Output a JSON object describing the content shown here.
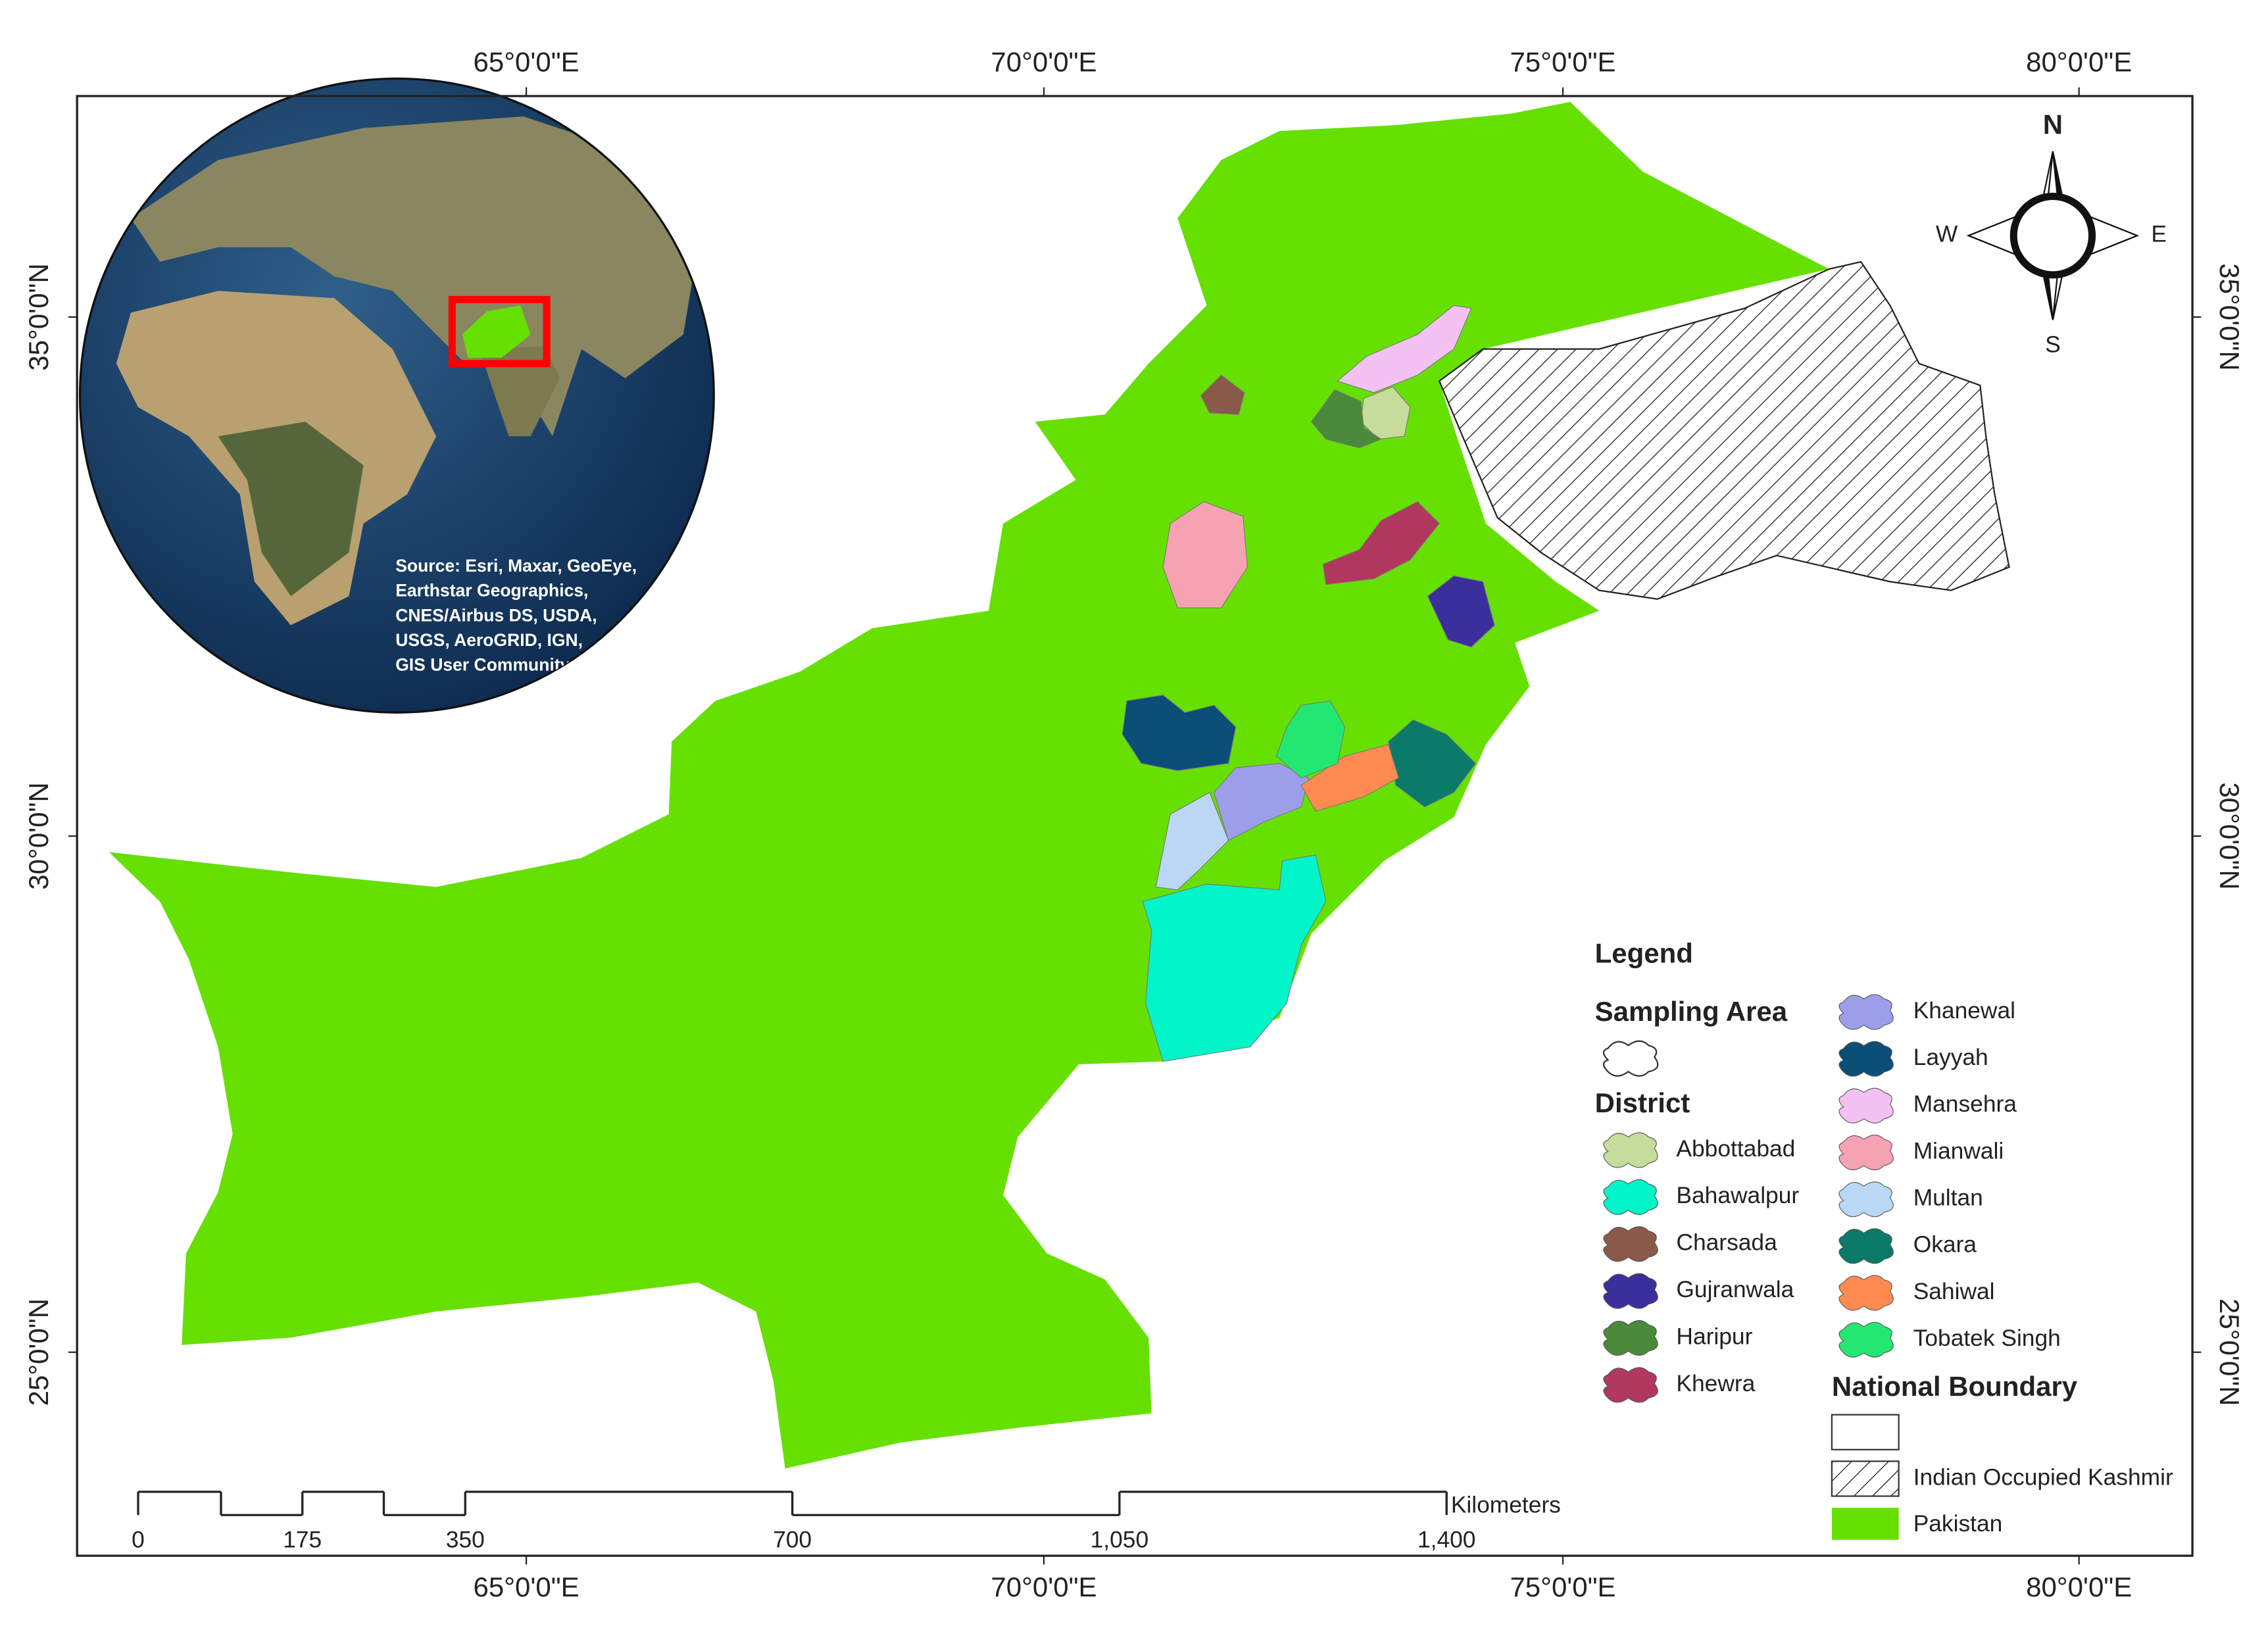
{
  "graticule": {
    "longitudes": [
      "65°0'0\"E",
      "70°0'0\"E",
      "75°0'0\"E",
      "80°0'0\"E"
    ],
    "latitudes": [
      "35°0'0\"N",
      "30°0'0\"N",
      "25°0'0\"N"
    ]
  },
  "inset": {
    "attribution": [
      "Source: Esri, Maxar, GeoEye,",
      "Earthstar Geographics,",
      "CNES/Airbus DS, USDA,",
      "USGS, AeroGRID, IGN,",
      "GIS User Community"
    ]
  },
  "compass": {
    "north": "N",
    "south": "S",
    "east": "E",
    "west": "W"
  },
  "legend": {
    "title": "Legend",
    "sampling_area": "Sampling Area",
    "district_heading": "District",
    "districts": [
      {
        "name": "Abbottabad",
        "color": "#c6dc9a"
      },
      {
        "name": "Bahawalpur",
        "color": "#00f5c8"
      },
      {
        "name": "Charsada",
        "color": "#8a5a48"
      },
      {
        "name": "Gujranwala",
        "color": "#3b2f9c"
      },
      {
        "name": "Haripur",
        "color": "#4a8a3a"
      },
      {
        "name": "Khewra",
        "color": "#b0385e"
      },
      {
        "name": "Khanewal",
        "color": "#9d9eea"
      },
      {
        "name": "Layyah",
        "color": "#0b4e78"
      },
      {
        "name": "Mansehra",
        "color": "#f3c2f2"
      },
      {
        "name": "Mianwali",
        "color": "#f5a2b2"
      },
      {
        "name": "Multan",
        "color": "#bad8f5"
      },
      {
        "name": "Okara",
        "color": "#0b7a68"
      },
      {
        "name": "Sahiwal",
        "color": "#ff8a52"
      },
      {
        "name": "Tobatek Singh",
        "color": "#22e872"
      }
    ],
    "national_boundary": "National Boundary",
    "boundaries": [
      {
        "name": "Indian Occupied Kashmir"
      },
      {
        "name": "Pakistan",
        "color": "#66e000"
      }
    ]
  },
  "scale_bar": {
    "unit": "Kilometers",
    "labels": [
      "0",
      "175",
      "350",
      "700",
      "1,050",
      "1,400"
    ]
  }
}
